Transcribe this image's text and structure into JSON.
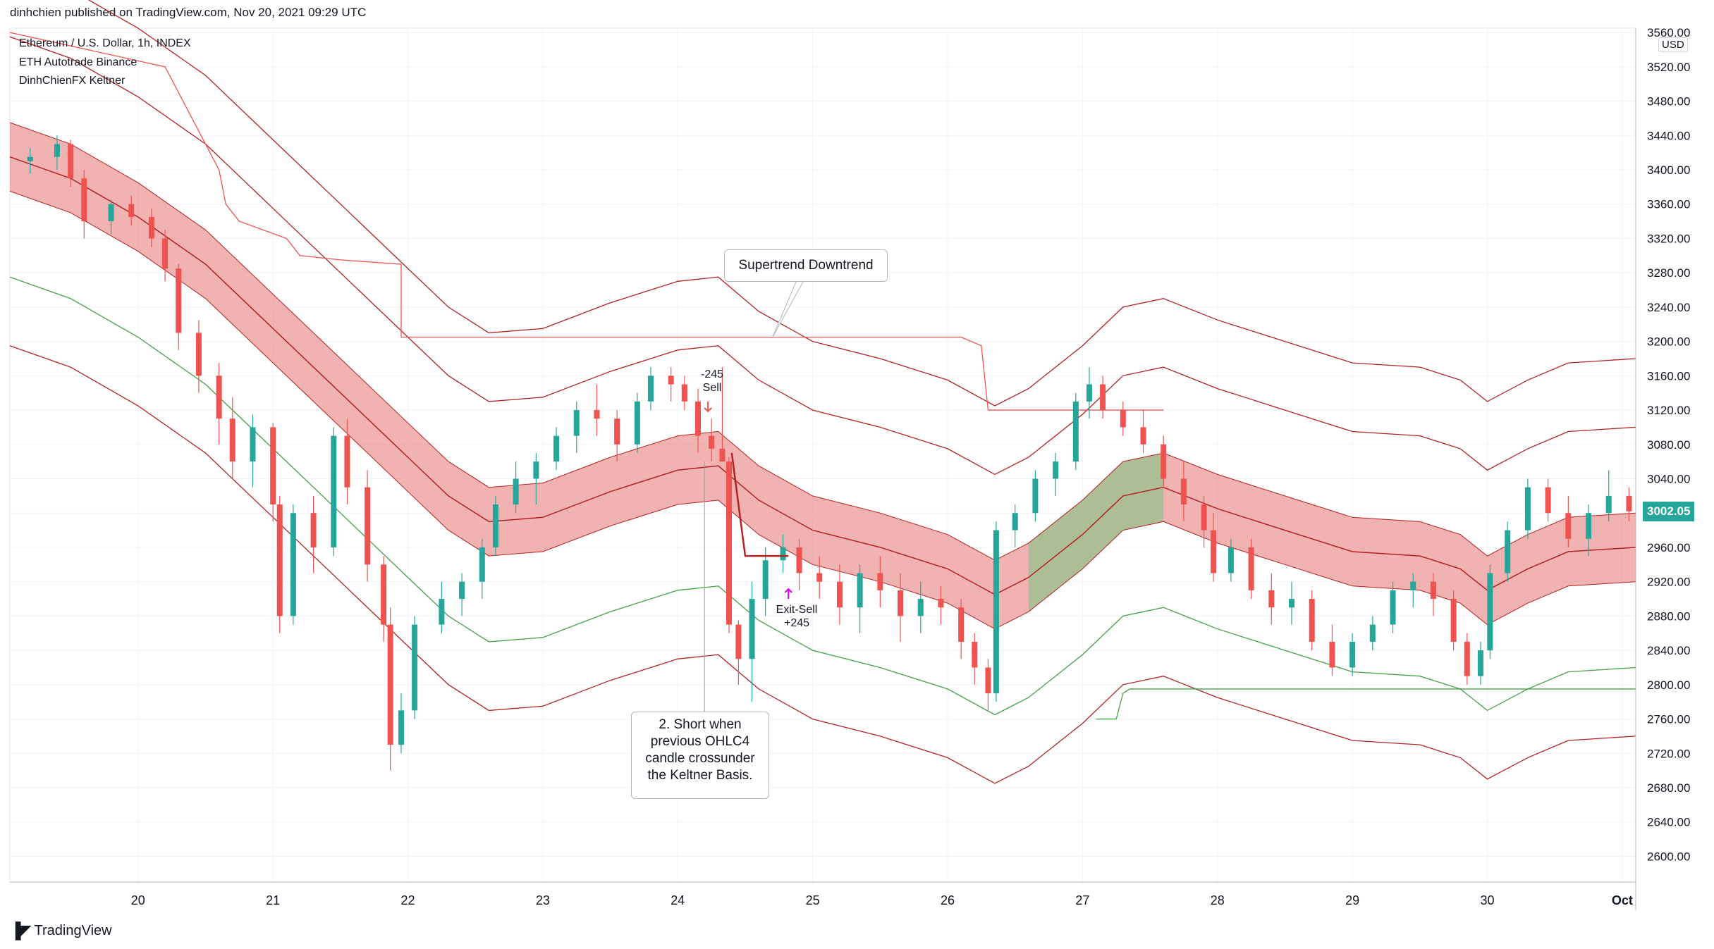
{
  "header": {
    "published_by": "dinhchien published on TradingView.com, Nov 20, 2021 09:29 UTC"
  },
  "legend": {
    "symbol": "Ethereum / U.S. Dollar, 1h, INDEX",
    "strategy": "ETH Autotrade Binance",
    "indicator": "DinhChienFX Keltner"
  },
  "price_axis": {
    "currency_badge": "USD",
    "last_price": "3002.05",
    "last_price_color": "#26a69a"
  },
  "footer": {
    "brand": "TradingView"
  },
  "annotations": {
    "supertrend_callout": "Supertrend Downtrend",
    "short_rule_callout": [
      "2. Short when",
      "previous OHLC4",
      "candle crossunder",
      "the Keltner Basis."
    ],
    "sell_label": [
      "-245",
      "Sell"
    ],
    "exit_label": [
      "Exit-Sell",
      "+245"
    ]
  },
  "colors": {
    "up": "#26a69a",
    "down": "#ef5350",
    "basis": "#b22222",
    "band_down_fill": "#e57373",
    "band_up_fill": "#81c784",
    "neutral_fill": "#c8a89a",
    "outer_green": "#43a047",
    "supertrend": "#ef5350"
  },
  "chart_data": {
    "type": "candlestick",
    "title": "Ethereum / U.S. Dollar, 1h, INDEX",
    "x_tick_labels": [
      "20",
      "21",
      "22",
      "23",
      "24",
      "25",
      "26",
      "27",
      "28",
      "29",
      "30",
      "Oct"
    ],
    "x_range_days": [
      19.05,
      31.1
    ],
    "y_tick_labels": [
      "3560.00",
      "3520.00",
      "3480.00",
      "3440.00",
      "3400.00",
      "3360.00",
      "3320.00",
      "3280.00",
      "3240.00",
      "3200.00",
      "3160.00",
      "3120.00",
      "3080.00",
      "3040.00",
      "3000.00",
      "2960.00",
      "2920.00",
      "2880.00",
      "2840.00",
      "2800.00",
      "2760.00",
      "2720.00",
      "2680.00",
      "2640.00",
      "2600.00"
    ],
    "ylim": [
      2570,
      3565
    ],
    "grid": true,
    "keltner_basis": [
      [
        19.05,
        3415
      ],
      [
        19.5,
        3390
      ],
      [
        20,
        3345
      ],
      [
        20.5,
        3290
      ],
      [
        21,
        3215
      ],
      [
        21.5,
        3140
      ],
      [
        22,
        3065
      ],
      [
        22.3,
        3020
      ],
      [
        22.6,
        2990
      ],
      [
        23,
        2995
      ],
      [
        23.5,
        3025
      ],
      [
        24,
        3050
      ],
      [
        24.3,
        3055
      ],
      [
        24.6,
        3015
      ],
      [
        25,
        2980
      ],
      [
        25.5,
        2960
      ],
      [
        26,
        2935
      ],
      [
        26.35,
        2905
      ],
      [
        26.6,
        2925
      ],
      [
        27,
        2975
      ],
      [
        27.3,
        3020
      ],
      [
        27.6,
        3030
      ],
      [
        28,
        3005
      ],
      [
        28.5,
        2980
      ],
      [
        29,
        2955
      ],
      [
        29.5,
        2950
      ],
      [
        29.8,
        2935
      ],
      [
        30,
        2910
      ],
      [
        30.3,
        2935
      ],
      [
        30.6,
        2955
      ],
      [
        31.1,
        2960
      ]
    ],
    "keltner_band_halfwidth": 40,
    "keltner_outer_halfwidth": 140,
    "supertrend": [
      [
        19.05,
        3560
      ],
      [
        20.2,
        3520
      ],
      [
        20.5,
        3430
      ],
      [
        20.6,
        3400
      ],
      [
        20.65,
        3360
      ],
      [
        20.75,
        3340
      ],
      [
        21.1,
        3320
      ],
      [
        21.2,
        3300
      ],
      [
        21.5,
        3295
      ],
      [
        21.95,
        3290
      ],
      [
        21.95,
        3205
      ],
      [
        25,
        3205
      ],
      [
        26.1,
        3205
      ],
      [
        26.25,
        3195
      ],
      [
        26.3,
        3120
      ],
      [
        27.6,
        3120
      ]
    ],
    "supertrend_up": [
      [
        27.1,
        2760
      ],
      [
        27.25,
        2760
      ],
      [
        27.3,
        2790
      ],
      [
        27.35,
        2795
      ],
      [
        31.1,
        2795
      ]
    ],
    "candles": [
      [
        19.2,
        3410,
        3425,
        3395,
        3415
      ],
      [
        19.4,
        3415,
        3440,
        3400,
        3430
      ],
      [
        19.5,
        3430,
        3435,
        3380,
        3390
      ],
      [
        19.6,
        3390,
        3400,
        3320,
        3340
      ],
      [
        19.8,
        3340,
        3365,
        3325,
        3360
      ],
      [
        19.95,
        3360,
        3370,
        3335,
        3345
      ],
      [
        20.1,
        3345,
        3355,
        3310,
        3320
      ],
      [
        20.2,
        3320,
        3330,
        3270,
        3285
      ],
      [
        20.3,
        3285,
        3290,
        3190,
        3210
      ],
      [
        20.45,
        3210,
        3225,
        3140,
        3160
      ],
      [
        20.6,
        3160,
        3175,
        3080,
        3110
      ],
      [
        20.7,
        3110,
        3135,
        3040,
        3060
      ],
      [
        20.85,
        3060,
        3115,
        3030,
        3100
      ],
      [
        21,
        3100,
        3105,
        2990,
        3010
      ],
      [
        21.05,
        3010,
        3020,
        2860,
        2880
      ],
      [
        21.15,
        2880,
        3010,
        2870,
        3000
      ],
      [
        21.3,
        3000,
        3020,
        2930,
        2960
      ],
      [
        21.45,
        2960,
        3100,
        2950,
        3090
      ],
      [
        21.55,
        3090,
        3110,
        3010,
        3030
      ],
      [
        21.7,
        3030,
        3050,
        2920,
        2940
      ],
      [
        21.82,
        2940,
        2950,
        2850,
        2870
      ],
      [
        21.87,
        2870,
        2890,
        2700,
        2730
      ],
      [
        21.95,
        2730,
        2790,
        2720,
        2770
      ],
      [
        22.05,
        2770,
        2880,
        2760,
        2870
      ],
      [
        22.25,
        2870,
        2920,
        2860,
        2900
      ],
      [
        22.4,
        2900,
        2930,
        2880,
        2920
      ],
      [
        22.55,
        2920,
        2970,
        2900,
        2960
      ],
      [
        22.65,
        2960,
        3020,
        2950,
        3010
      ],
      [
        22.8,
        3010,
        3060,
        3000,
        3040
      ],
      [
        22.95,
        3040,
        3070,
        3010,
        3060
      ],
      [
        23.1,
        3060,
        3100,
        3050,
        3090
      ],
      [
        23.25,
        3090,
        3130,
        3070,
        3120
      ],
      [
        23.4,
        3120,
        3150,
        3090,
        3110
      ],
      [
        23.55,
        3110,
        3120,
        3060,
        3080
      ],
      [
        23.7,
        3080,
        3140,
        3070,
        3130
      ],
      [
        23.8,
        3130,
        3170,
        3120,
        3160
      ],
      [
        23.95,
        3160,
        3170,
        3130,
        3150
      ],
      [
        24.05,
        3150,
        3160,
        3120,
        3130
      ],
      [
        24.15,
        3130,
        3145,
        3070,
        3090
      ],
      [
        24.25,
        3090,
        3110,
        3060,
        3075
      ],
      [
        24.33,
        3075,
        3170,
        3060,
        3060
      ],
      [
        24.38,
        3060,
        3065,
        2860,
        2870
      ],
      [
        24.45,
        2870,
        2875,
        2800,
        2830
      ],
      [
        24.55,
        2830,
        2920,
        2780,
        2900
      ],
      [
        24.65,
        2900,
        2960,
        2880,
        2945
      ],
      [
        24.78,
        2945,
        2975,
        2930,
        2960
      ],
      [
        24.9,
        2960,
        2970,
        2910,
        2930
      ],
      [
        25.05,
        2930,
        2950,
        2900,
        2920
      ],
      [
        25.2,
        2920,
        2940,
        2870,
        2890
      ],
      [
        25.35,
        2890,
        2940,
        2860,
        2930
      ],
      [
        25.5,
        2930,
        2950,
        2890,
        2910
      ],
      [
        25.65,
        2910,
        2930,
        2850,
        2880
      ],
      [
        25.8,
        2880,
        2920,
        2860,
        2900
      ],
      [
        25.95,
        2900,
        2915,
        2870,
        2890
      ],
      [
        26.1,
        2890,
        2900,
        2830,
        2850
      ],
      [
        26.2,
        2850,
        2860,
        2800,
        2820
      ],
      [
        26.3,
        2820,
        2830,
        2770,
        2790
      ],
      [
        26.36,
        2790,
        2990,
        2780,
        2980
      ],
      [
        26.5,
        2980,
        3010,
        2960,
        3000
      ],
      [
        26.65,
        3000,
        3050,
        2990,
        3040
      ],
      [
        26.8,
        3040,
        3070,
        3020,
        3060
      ],
      [
        26.95,
        3060,
        3140,
        3050,
        3130
      ],
      [
        27.05,
        3130,
        3170,
        3110,
        3150
      ],
      [
        27.15,
        3150,
        3160,
        3110,
        3120
      ],
      [
        27.3,
        3120,
        3130,
        3090,
        3100
      ],
      [
        27.45,
        3100,
        3120,
        3070,
        3080
      ],
      [
        27.6,
        3080,
        3090,
        3030,
        3040
      ],
      [
        27.75,
        3040,
        3060,
        2990,
        3010
      ],
      [
        27.9,
        3010,
        3020,
        2960,
        2980
      ],
      [
        27.97,
        2980,
        3000,
        2920,
        2930
      ],
      [
        28.1,
        2930,
        2970,
        2920,
        2960
      ],
      [
        28.25,
        2960,
        2970,
        2900,
        2910
      ],
      [
        28.4,
        2910,
        2930,
        2870,
        2890
      ],
      [
        28.55,
        2890,
        2920,
        2870,
        2900
      ],
      [
        28.7,
        2900,
        2910,
        2840,
        2850
      ],
      [
        28.85,
        2850,
        2870,
        2810,
        2820
      ],
      [
        29.0,
        2820,
        2860,
        2810,
        2850
      ],
      [
        29.15,
        2850,
        2880,
        2840,
        2870
      ],
      [
        29.3,
        2870,
        2920,
        2860,
        2910
      ],
      [
        29.45,
        2910,
        2930,
        2890,
        2920
      ],
      [
        29.6,
        2920,
        2930,
        2880,
        2900
      ],
      [
        29.75,
        2900,
        2910,
        2840,
        2850
      ],
      [
        29.85,
        2850,
        2860,
        2800,
        2810
      ],
      [
        29.95,
        2810,
        2850,
        2800,
        2840
      ],
      [
        30.02,
        2840,
        2940,
        2830,
        2930
      ],
      [
        30.15,
        2930,
        2990,
        2920,
        2980
      ],
      [
        30.3,
        2980,
        3040,
        2970,
        3030
      ],
      [
        30.45,
        3030,
        3040,
        2990,
        3000
      ],
      [
        30.6,
        3000,
        3020,
        2960,
        2970
      ],
      [
        30.75,
        2970,
        3010,
        2950,
        3000
      ],
      [
        30.9,
        3000,
        3050,
        2990,
        3020
      ],
      [
        31.05,
        3020,
        3030,
        2990,
        3002
      ]
    ]
  }
}
